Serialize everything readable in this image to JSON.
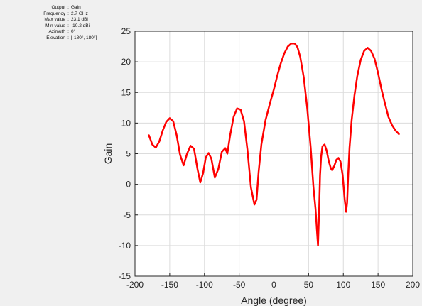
{
  "info": [
    {
      "key": "Output",
      "value": "Gain"
    },
    {
      "key": "Frequency",
      "value": "2.7 GHz"
    },
    {
      "key": "Max value",
      "value": "23.1 dBi"
    },
    {
      "key": "Min value",
      "value": "-10.2 dBi"
    },
    {
      "key": "Azimuth",
      "value": "0°"
    },
    {
      "key": "Elevation",
      "value": "[-180°, 180°]"
    }
  ],
  "chart_data": {
    "type": "line",
    "title": "",
    "xlabel": "Angle (degree)",
    "ylabel": "Gain",
    "xlim": [
      -200,
      200
    ],
    "ylim": [
      -15,
      25
    ],
    "xticks": [
      -200,
      -150,
      -100,
      -50,
      0,
      50,
      100,
      150,
      200
    ],
    "yticks": [
      -15,
      -10,
      -5,
      0,
      5,
      10,
      15,
      20,
      25
    ],
    "grid": true,
    "line_color": "#ff0000",
    "series": [
      {
        "x": [
          -180,
          -175,
          -170,
          -165,
          -160,
          -155,
          -150,
          -145,
          -140,
          -135,
          -130,
          -125,
          -120,
          -115,
          -110,
          -106,
          -102,
          -98,
          -94,
          -90,
          -85,
          -80,
          -75,
          -70,
          -67,
          -63,
          -58,
          -53,
          -48,
          -43,
          -38,
          -33,
          -28,
          -25,
          -22,
          -18,
          -12,
          -5,
          0,
          5,
          10,
          15,
          20,
          25,
          30,
          34,
          38,
          43,
          48,
          53,
          57,
          60,
          62,
          63.5,
          65,
          66.5,
          68,
          70,
          73,
          76,
          79,
          82,
          84,
          87,
          90,
          93,
          96,
          99,
          102,
          104,
          105.5,
          107,
          109,
          112,
          116,
          120,
          125,
          130,
          135,
          140,
          145,
          150,
          155,
          160,
          165,
          170,
          175,
          180
        ],
        "y": [
          8.0,
          6.5,
          6.0,
          7.0,
          8.8,
          10.2,
          10.8,
          10.3,
          8.0,
          4.8,
          3.1,
          5.0,
          6.3,
          5.8,
          2.5,
          0.3,
          1.8,
          4.4,
          5.1,
          4.2,
          1.1,
          2.5,
          5.3,
          5.9,
          5.0,
          8.0,
          11.0,
          12.4,
          12.2,
          10.3,
          5.5,
          -0.5,
          -3.3,
          -2.5,
          2.0,
          6.5,
          10.5,
          13.5,
          15.5,
          17.8,
          19.8,
          21.4,
          22.5,
          23.0,
          23.0,
          22.4,
          20.8,
          17.5,
          12.5,
          6.0,
          -0.5,
          -4.0,
          -7.5,
          -10.0,
          -5.0,
          1.5,
          4.5,
          6.2,
          6.5,
          5.5,
          3.8,
          2.6,
          2.3,
          3.0,
          4.0,
          4.3,
          3.7,
          1.5,
          -2.5,
          -4.5,
          -3.0,
          1.5,
          6.0,
          10.5,
          14.5,
          17.6,
          20.3,
          21.8,
          22.3,
          21.8,
          20.5,
          18.2,
          15.5,
          13.2,
          11.0,
          9.7,
          8.8,
          8.2
        ]
      }
    ]
  }
}
